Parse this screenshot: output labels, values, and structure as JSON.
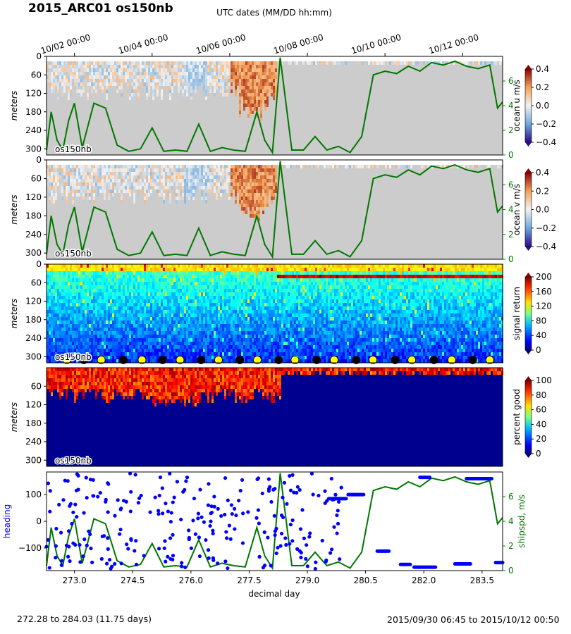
{
  "figure": {
    "title": "2015_ARC01 os150nb",
    "footer_left": "272.28 to 284.03 (11.75 days)",
    "footer_right": "2015/09/30 06:45 to 2015/10/12 00:50"
  },
  "colors": {
    "no_data": "#cccccc",
    "ship_speed": "#007700",
    "heading": "#0000ff",
    "marker_fill_a": "#ffff00",
    "marker_fill_b": "#000000"
  },
  "chart_data": [
    {
      "type": "heatmap",
      "panel": "ocean-u",
      "label": "os150nb",
      "ylabel": "meters",
      "ylim": [
        320,
        0
      ],
      "yticks": [
        0,
        60,
        120,
        180,
        240,
        300
      ],
      "xlim": [
        272.28,
        284.03
      ],
      "top_axis": {
        "label": "UTC dates (MM/DD hh:mm)",
        "ticks": [
          {
            "x": 273.0,
            "label": "10/02 00:00"
          },
          {
            "x": 275.0,
            "label": "10/04 00:00"
          },
          {
            "x": 277.0,
            "label": "10/06 00:00"
          },
          {
            "x": 279.0,
            "label": "10/08 00:00"
          },
          {
            "x": 281.0,
            "label": "10/10 00:00"
          },
          {
            "x": 283.0,
            "label": "10/12 00:00"
          }
        ]
      },
      "colorbar": {
        "label": "ocean u m/s",
        "range": [
          -0.4,
          0.4
        ],
        "ticks": [
          -0.4,
          -0.2,
          0.0,
          0.2,
          0.4
        ],
        "colormap": "RdBu_r"
      },
      "right_axis": {
        "ticks": [
          0,
          2,
          4,
          6
        ],
        "range": [
          0,
          8
        ]
      }
    },
    {
      "type": "heatmap",
      "panel": "ocean-v",
      "label": "os150nb",
      "ylabel": "meters",
      "ylim": [
        320,
        0
      ],
      "yticks": [
        0,
        60,
        120,
        180,
        240,
        300
      ],
      "xlim": [
        272.28,
        284.03
      ],
      "colorbar": {
        "label": "ocean v m/s",
        "range": [
          -0.4,
          0.4
        ],
        "ticks": [
          -0.4,
          -0.2,
          0.0,
          0.2,
          0.4
        ],
        "colormap": "RdBu_r"
      },
      "right_axis": {
        "ticks": [
          0,
          2,
          4,
          6
        ],
        "range": [
          0,
          8
        ]
      }
    },
    {
      "type": "heatmap",
      "panel": "signal-return",
      "label": "os150nb",
      "ylabel": "meters",
      "ylim": [
        320,
        0
      ],
      "yticks": [
        0,
        60,
        120,
        180,
        240,
        300
      ],
      "xlim": [
        272.28,
        284.03
      ],
      "colorbar": {
        "label": "signal return",
        "range": [
          0,
          200
        ],
        "ticks": [
          0,
          40,
          80,
          120,
          160,
          200
        ],
        "colormap": "jet"
      },
      "markers_x": [
        272.8,
        273.24,
        273.69,
        274.26,
        274.74,
        275.27,
        275.72,
        276.26,
        276.71,
        277.26,
        277.71,
        278.26,
        278.68,
        279.24,
        279.69,
        280.26,
        280.69,
        281.26,
        281.69,
        282.26,
        282.72,
        283.26,
        283.7
      ]
    },
    {
      "type": "heatmap",
      "panel": "percent-good",
      "label": "os150nb",
      "ylabel": "meters",
      "ylim": [
        320,
        0
      ],
      "yticks": [
        60,
        120,
        180,
        240,
        300
      ],
      "xlim": [
        272.28,
        284.03
      ],
      "colorbar": {
        "label": "percent good",
        "range": [
          0,
          100
        ],
        "ticks": [
          0,
          20,
          40,
          60,
          80,
          100
        ],
        "colormap": "jet"
      }
    },
    {
      "type": "scatter",
      "panel": "heading-shipspd",
      "xlabel": "decimal day",
      "xlim": [
        272.28,
        284.03
      ],
      "xticks": [
        273.0,
        274.5,
        276.0,
        277.5,
        279.0,
        280.5,
        282.0,
        283.5
      ],
      "xtick_labels": [
        "273.0",
        "274.5",
        "276.0",
        "277.5",
        "279.0",
        "280.5",
        "282.0",
        "283.5"
      ],
      "ylabel_left": "heading",
      "ylim_left": [
        -185,
        185
      ],
      "yticks_left": [
        -100,
        0,
        100
      ],
      "ylabel_right": "shipspd, m/s",
      "ylim_right": [
        0,
        8
      ],
      "yticks_right": [
        0,
        2,
        4,
        6
      ],
      "heading_segments": [
        {
          "x": [
            280.8,
            281.1
          ],
          "y": -112
        },
        {
          "x": [
            281.4,
            281.65
          ],
          "y": -162
        },
        {
          "x": [
            281.75,
            282.3
          ],
          "y": -172
        },
        {
          "x": [
            282.8,
            283.2
          ],
          "y": -160
        },
        {
          "x": [
            283.1,
            283.75
          ],
          "y": 160
        },
        {
          "x": [
            281.9,
            282.15
          ],
          "y": 165
        },
        {
          "x": [
            280.05,
            280.45
          ],
          "y": 100
        },
        {
          "x": [
            279.55,
            280.0
          ],
          "y": 85
        },
        {
          "x": [
            283.85,
            284.03
          ],
          "y": -155
        }
      ],
      "ship_speed_x": [
        272.28,
        272.4,
        272.55,
        272.7,
        272.85,
        273.0,
        273.2,
        273.5,
        273.8,
        274.1,
        274.4,
        274.7,
        275.0,
        275.3,
        275.6,
        275.9,
        276.2,
        276.5,
        276.8,
        277.1,
        277.4,
        277.7,
        277.9,
        278.1,
        278.3,
        278.6,
        278.9,
        279.2,
        279.5,
        279.8,
        280.1,
        280.4,
        280.7,
        281.0,
        281.3,
        281.6,
        281.9,
        282.2,
        282.5,
        282.8,
        283.1,
        283.4,
        283.7,
        283.9,
        284.03
      ],
      "ship_speed_y": [
        0.4,
        3.5,
        1.2,
        0.4,
        2.8,
        4.2,
        0.6,
        4.2,
        3.8,
        0.8,
        0.3,
        0.5,
        2.2,
        0.3,
        0.4,
        0.3,
        2.5,
        0.3,
        0.6,
        0.4,
        0.3,
        3.5,
        1.2,
        0.2,
        7.9,
        0.4,
        0.4,
        1.5,
        0.4,
        0.7,
        0.2,
        1.5,
        6.5,
        6.8,
        6.6,
        7.2,
        6.8,
        7.5,
        7.3,
        7.6,
        7.2,
        7.0,
        7.3,
        3.8,
        4.3
      ]
    }
  ]
}
